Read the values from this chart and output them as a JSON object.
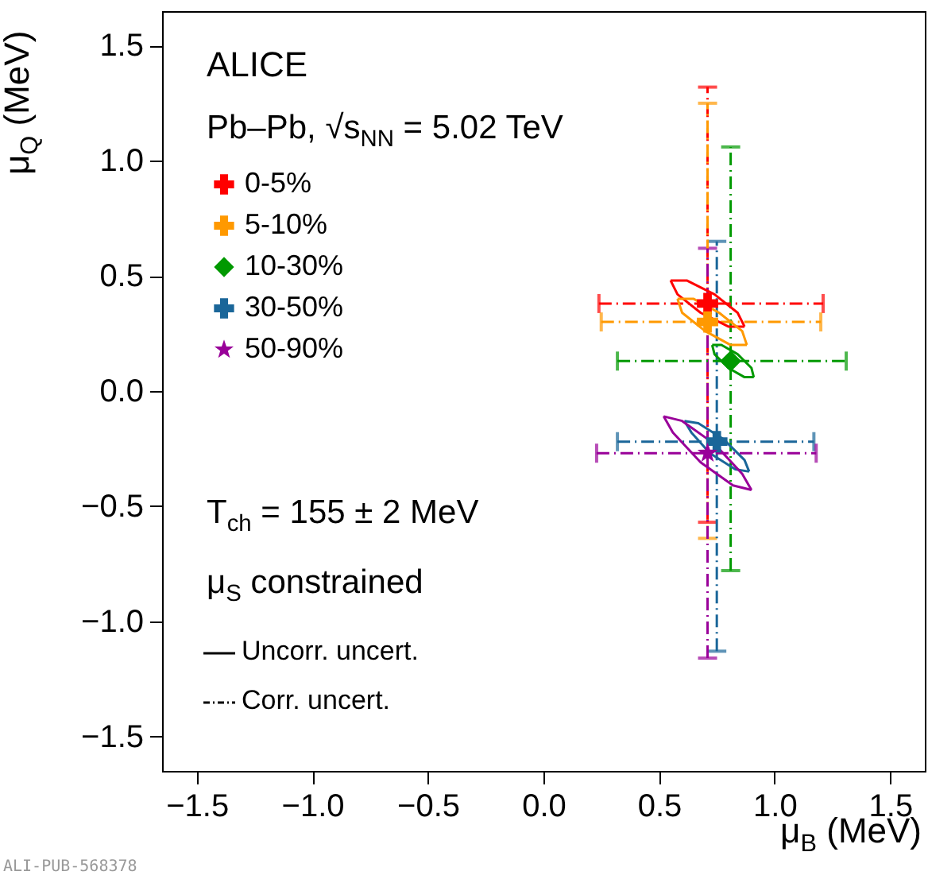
{
  "chart_data": {
    "type": "scatter",
    "xlabel": "μ$_{B}$ (MeV)",
    "ylabel": "μ$_{Q}$ (MeV)",
    "xlim": [
      -1.65,
      1.65
    ],
    "ylim": [
      -1.65,
      1.65
    ],
    "xticks": [
      {
        "value": -1.5,
        "label": "−1.5"
      },
      {
        "value": -1,
        "label": "−1.0"
      },
      {
        "value": -0.5,
        "label": "−0.5"
      },
      {
        "value": 0,
        "label": "0.0"
      },
      0.5,
      {
        "value": 1,
        "label": "1.0"
      },
      1.5
    ],
    "yticks": [
      {
        "value": -1.5,
        "label": "−1.5"
      },
      {
        "value": -1,
        "label": "−1.0"
      },
      {
        "value": -0.5,
        "label": "−0.5"
      },
      {
        "value": 0,
        "label": "0.0"
      },
      0.5,
      {
        "value": 1,
        "label": "1.0"
      },
      1.5
    ],
    "grid": false,
    "legend": "top left",
    "annotations": [
      "ALICE",
      "Pb–Pb, √s$_{NN}$ = 5.02 TeV",
      "T$_{ch}$ = 155 ± 2 MeV",
      "μ$_{S}$ constrained",
      "Uncorr. uncert.",
      "Corr. uncert.",
      "ALI-PUB-568378"
    ],
    "series": [
      {
        "name": "0-5%",
        "color": "#ff0000",
        "marker": "cross",
        "x": [
          0.71
        ],
        "values": [
          0.38
        ],
        "errors": [
          [
            -0.57,
            1.32
          ]
        ],
        "xerrors": [
          [
            0.24,
            1.21
          ]
        ]
      },
      {
        "name": "5-10%",
        "color": "#ff9900",
        "marker": "cross",
        "x": [
          0.71
        ],
        "values": [
          0.3
        ],
        "errors": [
          [
            -0.64,
            1.25
          ]
        ],
        "xerrors": [
          [
            0.25,
            1.2
          ]
        ]
      },
      {
        "name": "10-30%",
        "color": "#009900",
        "marker": "diamond",
        "x": [
          0.81
        ],
        "values": [
          0.13
        ],
        "errors": [
          [
            -0.78,
            1.06
          ]
        ],
        "xerrors": [
          [
            0.32,
            1.31
          ]
        ]
      },
      {
        "name": "30-50%",
        "color": "#1a6699",
        "marker": "cross",
        "x": [
          0.75
        ],
        "values": [
          -0.22
        ],
        "errors": [
          [
            -1.13,
            0.65
          ]
        ],
        "xerrors": [
          [
            0.32,
            1.17
          ]
        ]
      },
      {
        "name": "50-90%",
        "color": "#990099",
        "marker": "star",
        "x": [
          0.71
        ],
        "values": [
          -0.27
        ],
        "errors": [
          [
            -1.16,
            0.62
          ]
        ],
        "xerrors": [
          [
            0.23,
            1.18
          ]
        ]
      },
      {
        "type": "line",
        "color": "#ff0000",
        "x": [
          0.55,
          0.58,
          0.68,
          0.8,
          0.87
        ],
        "values": [
          0.48,
          0.42,
          0.34,
          0.28,
          0.28
        ]
      },
      {
        "type": "line",
        "color": "#ff0000",
        "x": [
          0.55,
          0.62,
          0.74,
          0.84,
          0.87
        ],
        "values": [
          0.48,
          0.48,
          0.42,
          0.34,
          0.28
        ]
      },
      {
        "type": "line",
        "color": "#ff9900",
        "x": [
          0.58,
          0.6,
          0.7,
          0.81,
          0.88
        ],
        "values": [
          0.4,
          0.34,
          0.26,
          0.2,
          0.2
        ]
      },
      {
        "type": "line",
        "color": "#ff9900",
        "x": [
          0.58,
          0.65,
          0.76,
          0.86,
          0.88
        ],
        "values": [
          0.4,
          0.4,
          0.34,
          0.26,
          0.2
        ]
      },
      {
        "type": "line",
        "color": "#009900",
        "x": [
          0.73,
          0.74,
          0.8,
          0.87,
          0.91
        ],
        "values": [
          0.2,
          0.16,
          0.1,
          0.06,
          0.06
        ]
      },
      {
        "type": "line",
        "color": "#009900",
        "x": [
          0.73,
          0.77,
          0.84,
          0.9,
          0.91
        ],
        "values": [
          0.2,
          0.2,
          0.16,
          0.1,
          0.06
        ]
      },
      {
        "type": "line",
        "color": "#1a6699",
        "x": [
          0.61,
          0.64,
          0.72,
          0.83,
          0.89
        ],
        "values": [
          -0.13,
          -0.18,
          -0.27,
          -0.34,
          -0.35
        ]
      },
      {
        "type": "line",
        "color": "#1a6699",
        "x": [
          0.61,
          0.67,
          0.78,
          0.87,
          0.89
        ],
        "values": [
          -0.13,
          -0.14,
          -0.21,
          -0.3,
          -0.35
        ]
      },
      {
        "type": "line",
        "color": "#990099",
        "x": [
          0.52,
          0.56,
          0.68,
          0.82,
          0.9
        ],
        "values": [
          -0.11,
          -0.18,
          -0.31,
          -0.41,
          -0.43
        ]
      },
      {
        "type": "line",
        "color": "#990099",
        "x": [
          0.52,
          0.6,
          0.74,
          0.86,
          0.9
        ],
        "values": [
          -0.11,
          -0.13,
          -0.23,
          -0.36,
          -0.43
        ]
      }
    ]
  }
}
